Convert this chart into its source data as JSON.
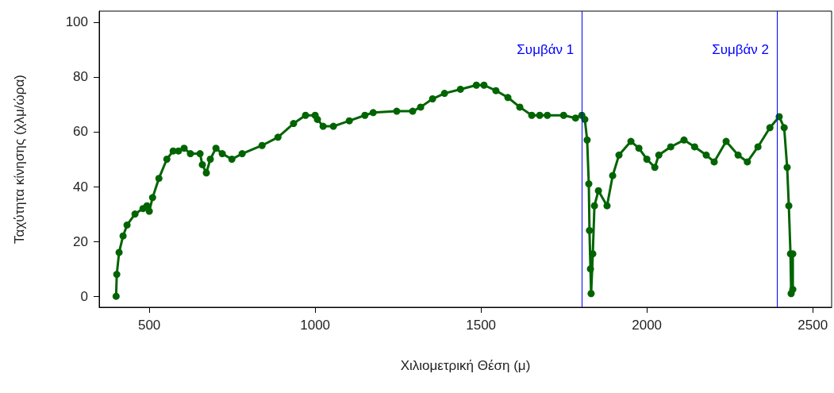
{
  "chart_data": {
    "type": "line",
    "xlabel": "Χιλιομετρική Θέση (μ)",
    "ylabel": "Ταχύτητα κίνησης (χλμ/ώρα)",
    "xlim": [
      349,
      2557
    ],
    "ylim": [
      -4,
      104
    ],
    "xticks": [
      500,
      1000,
      1500,
      2000,
      2500
    ],
    "yticks": [
      0,
      20,
      40,
      60,
      80,
      100
    ],
    "grid": false,
    "marker": "circle",
    "line_style": "solid",
    "series": [
      {
        "color": "#006400",
        "x": [
          400,
          402,
          409,
          421,
          433,
          457,
          481,
          493,
          500,
          510,
          529,
          553,
          572,
          588,
          605,
          624,
          653,
          660,
          672,
          684,
          701,
          720,
          749,
          780,
          840,
          888,
          935,
          971,
          1000,
          1007,
          1024,
          1055,
          1103,
          1150,
          1175,
          1246,
          1294,
          1318,
          1354,
          1390,
          1438,
          1486,
          1509,
          1545,
          1581,
          1617,
          1653,
          1677,
          1700,
          1749,
          1785,
          1804,
          1813,
          1820,
          1825,
          1827,
          1830,
          1832,
          1837,
          1842,
          1854,
          1880,
          1897,
          1916,
          1952,
          1976,
          2000,
          2024,
          2036,
          2072,
          2112,
          2144,
          2179,
          2203,
          2239,
          2275,
          2303,
          2335,
          2371,
          2399,
          2414,
          2423,
          2428,
          2433,
          2435,
          2440,
          2440
        ],
        "values": [
          0,
          8,
          16,
          22,
          26,
          30,
          32,
          33,
          31,
          36,
          43,
          50,
          53,
          53,
          54,
          52,
          52,
          48,
          45,
          50,
          54,
          52,
          50,
          52,
          55,
          58,
          63,
          66,
          66,
          64.5,
          62,
          62,
          64,
          66,
          67,
          67.5,
          67.5,
          69,
          72,
          74,
          75.5,
          77,
          77,
          75,
          72.5,
          69,
          66,
          66,
          66,
          66,
          65,
          66,
          64.5,
          57,
          41,
          24,
          10,
          1,
          15.5,
          33,
          38.5,
          33,
          44,
          51.5,
          56.5,
          54,
          50,
          47,
          51.5,
          54.5,
          57,
          54.5,
          51.5,
          49,
          56.5,
          51.5,
          49,
          54.5,
          61.5,
          65.5,
          61.5,
          47,
          33,
          15.5,
          1,
          15.5,
          2.5
        ]
      }
    ],
    "ref_lines": [
      {
        "axis": "x",
        "value": 1804,
        "label": "Συμβάν 1",
        "color": "#0000ff"
      },
      {
        "axis": "x",
        "value": 2392,
        "label": "Συμβάν 2",
        "color": "#0000ff"
      }
    ]
  }
}
